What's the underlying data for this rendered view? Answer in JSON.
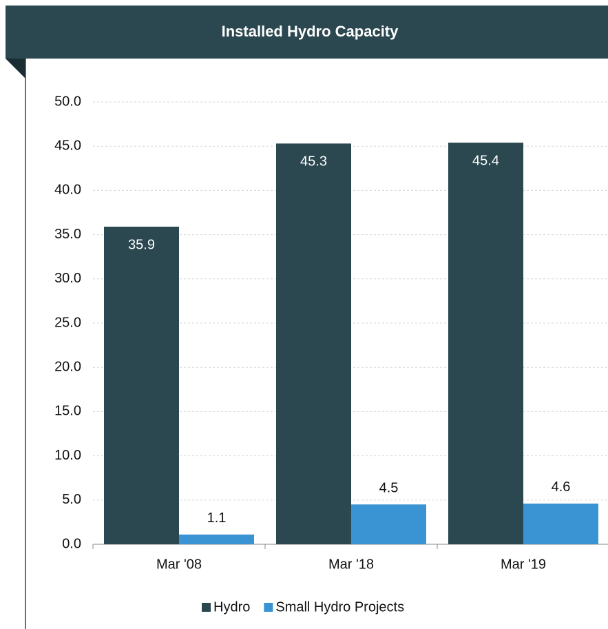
{
  "chart_data": {
    "type": "bar",
    "title": "Installed Hydro Capacity",
    "categories": [
      "Mar '08",
      "Mar '18",
      "Mar '19"
    ],
    "series": [
      {
        "name": "Hydro",
        "color": "#2b474f",
        "values": [
          35.9,
          45.3,
          45.4
        ]
      },
      {
        "name": "Small Hydro Projects",
        "color": "#3a93d3",
        "values": [
          1.1,
          4.5,
          4.6
        ]
      }
    ],
    "ylim": [
      0,
      50
    ],
    "yticks": [
      {
        "value": 0,
        "label": "0.0"
      },
      {
        "value": 5,
        "label": "5.0"
      },
      {
        "value": 10,
        "label": "10.0"
      },
      {
        "value": 15,
        "label": "15.0"
      },
      {
        "value": 20,
        "label": "20.0"
      },
      {
        "value": 25,
        "label": "25.0"
      },
      {
        "value": 30,
        "label": "30.0"
      },
      {
        "value": 35,
        "label": "35.0"
      },
      {
        "value": 40,
        "label": "40.0"
      },
      {
        "value": 45,
        "label": "45.0"
      },
      {
        "value": 50,
        "label": "50.0"
      }
    ],
    "grid": true,
    "legend": "bottom"
  }
}
